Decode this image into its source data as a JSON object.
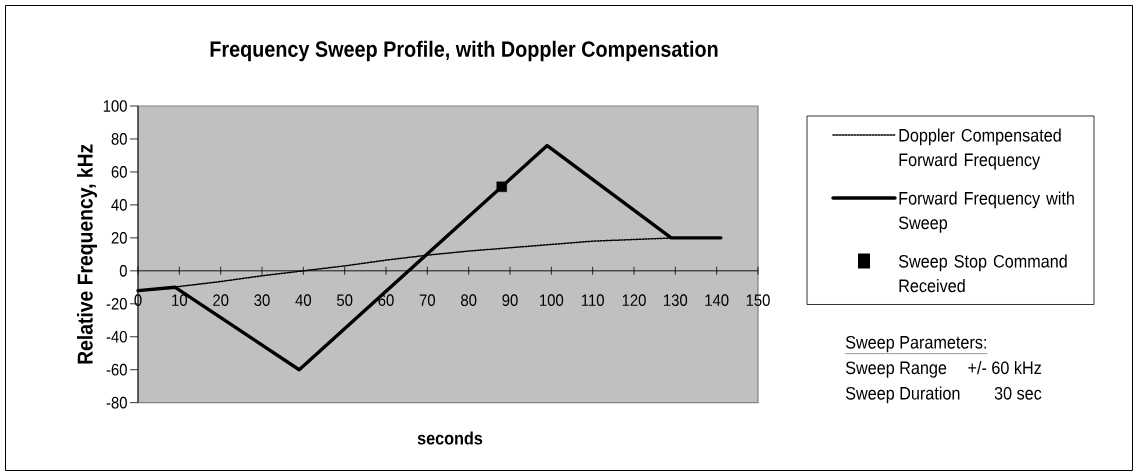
{
  "chart_data": {
    "type": "line",
    "title": "Frequency Sweep Profile, with Doppler Compensation",
    "xlabel": "seconds",
    "ylabel": "Relative Frequency, kHz",
    "series": [
      {
        "name": "Doppler Compensated Forward Frequency",
        "color": "#000000",
        "line_style": "dotted",
        "marker": "none",
        "x": [
          0,
          10,
          20,
          30,
          40,
          50,
          60,
          70,
          80,
          90,
          100,
          110,
          120,
          130
        ],
        "values": [
          -12,
          -9.5,
          -6.5,
          -3,
          0,
          3,
          6.5,
          9.5,
          12,
          14,
          16,
          18,
          19,
          20
        ]
      },
      {
        "name": "Forward Frequency with Sweep",
        "color": "#000000",
        "line_style": "solid",
        "marker": "none",
        "x": [
          0,
          9,
          39,
          99,
          129,
          141
        ],
        "values": [
          -12,
          -10,
          -60,
          76,
          20,
          20
        ]
      },
      {
        "name": "Sweep Stop Command Received",
        "type": "scatter",
        "color": "#000000",
        "marker": "square",
        "x": [
          88
        ],
        "values": [
          51
        ]
      }
    ],
    "xlim": [
      0,
      150
    ],
    "xticks": [
      0,
      10,
      20,
      30,
      40,
      50,
      60,
      70,
      80,
      90,
      100,
      110,
      120,
      130,
      140,
      150
    ],
    "ylim": [
      -80,
      100
    ],
    "yticks": [
      -80,
      -60,
      -40,
      -20,
      0,
      20,
      40,
      60,
      80,
      100
    ],
    "legend": "right",
    "annotations": [
      "Sweep Parameters:",
      "Sweep Range",
      "+/- 60 kHz",
      "Sweep Duration",
      "30 sec"
    ]
  }
}
